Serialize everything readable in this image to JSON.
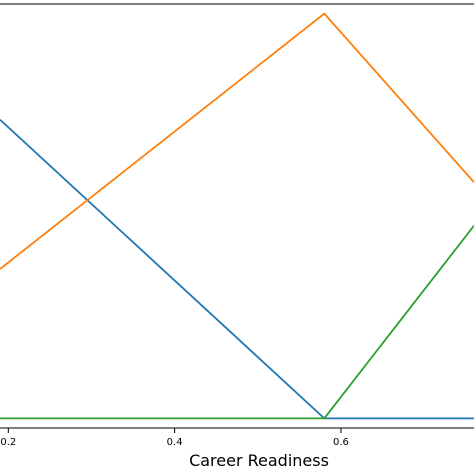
{
  "chart_data": {
    "type": "line",
    "xlabel": "Career Readiness",
    "ylabel": "",
    "title": "",
    "xlim": [
      0.19,
      0.76
    ],
    "ylim": [
      -0.02,
      0.86
    ],
    "x": [
      0.19,
      0.58,
      0.76
    ],
    "xticks": [
      {
        "value": 0.2,
        "label": "0.2"
      },
      {
        "value": 0.4,
        "label": "0.4"
      },
      {
        "value": 0.6,
        "label": "0.6"
      }
    ],
    "series": [
      {
        "color": "#1f77b4",
        "values": [
          0.62,
          0.0,
          0.0
        ]
      },
      {
        "color": "#ff7f0e",
        "values": [
          0.31,
          0.84,
          0.49
        ]
      },
      {
        "color": "#2ca02c",
        "values": [
          0.0,
          0.0,
          0.4
        ]
      }
    ],
    "grid": false,
    "legend": "none"
  }
}
